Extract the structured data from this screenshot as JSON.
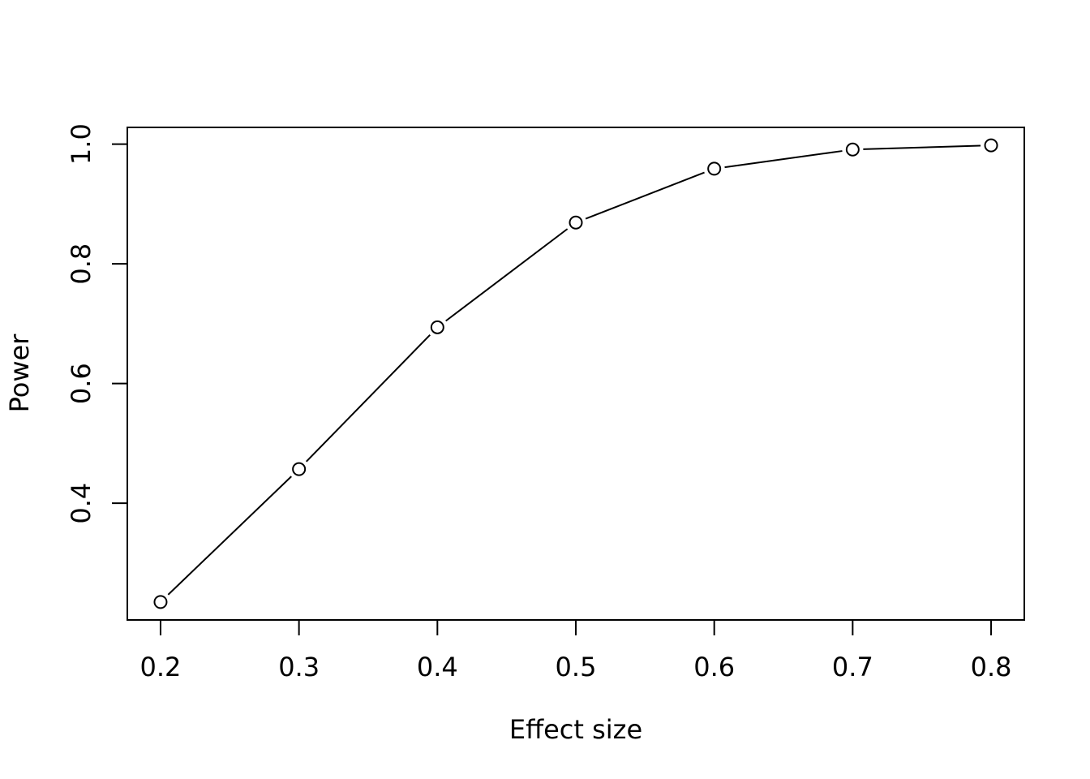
{
  "chart_data": {
    "type": "line",
    "title": "",
    "xlabel": "Effect size",
    "ylabel": "Power",
    "x": [
      0.2,
      0.3,
      0.4,
      0.5,
      0.6,
      0.7,
      0.8
    ],
    "series": [
      {
        "values": [
          0.235,
          0.457,
          0.694,
          0.869,
          0.959,
          0.991,
          0.998
        ],
        "marker": "open-circle",
        "color": "#000000"
      }
    ],
    "xlim": [
      0.176,
      0.824
    ],
    "ylim": [
      0.205,
      1.028
    ],
    "x_ticks": [
      0.2,
      0.3,
      0.4,
      0.5,
      0.6,
      0.7,
      0.8
    ],
    "x_tick_labels": [
      "0.2",
      "0.3",
      "0.4",
      "0.5",
      "0.6",
      "0.7",
      "0.8"
    ],
    "y_ticks": [
      0.4,
      0.6,
      0.8,
      1.0
    ],
    "y_tick_labels": [
      "0.4",
      "0.6",
      "0.8",
      "1.0"
    ],
    "grid": false,
    "legend": "none"
  }
}
